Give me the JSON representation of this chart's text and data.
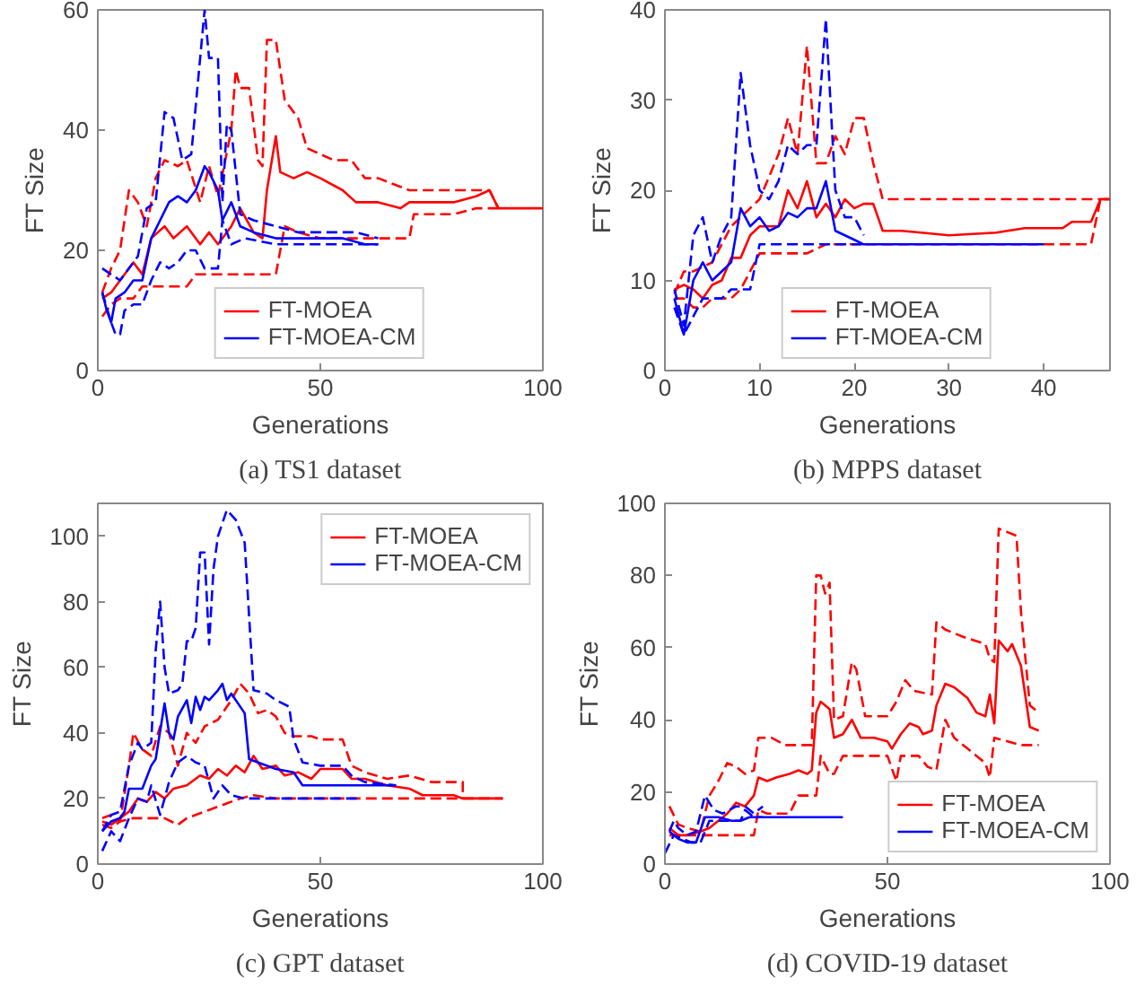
{
  "chart_data": [
    {
      "type": "line",
      "title": "(a) TS1 dataset",
      "xlabel": "Generations",
      "ylabel": "FT Size",
      "xlim": [
        0,
        100
      ],
      "ylim": [
        0,
        60
      ],
      "xticks": [
        0,
        50,
        100
      ],
      "yticks": [
        0,
        20,
        40,
        60
      ],
      "grid": false,
      "legend": "bottom",
      "marker": "none",
      "series": [
        {
          "name": "FT-MOEA",
          "color": "#ff0000",
          "line_style": "solid",
          "x": [
            1,
            3,
            5,
            8,
            10,
            12,
            15,
            17,
            20,
            23,
            25,
            27,
            30,
            32,
            35,
            37,
            38,
            40,
            41,
            44,
            47,
            50,
            55,
            58,
            63,
            68,
            70,
            75,
            80,
            85,
            88,
            90,
            100
          ],
          "values": [
            12,
            13,
            15,
            18,
            16,
            22,
            24,
            22,
            24,
            21,
            23,
            21,
            24,
            27,
            23,
            22,
            30,
            39,
            33,
            32,
            33,
            32,
            30,
            28,
            28,
            27,
            28,
            28,
            28,
            29,
            30,
            27,
            27
          ]
        },
        {
          "color": "#ff0000",
          "line_style": "dashed",
          "x": [
            1,
            3,
            5,
            7,
            9,
            11,
            13,
            15,
            18,
            20,
            23,
            25,
            27,
            30,
            31,
            32,
            34,
            36,
            37,
            38,
            40,
            42,
            45,
            47,
            50,
            53,
            57,
            60,
            63,
            70,
            80,
            88,
            90
          ],
          "values": [
            13,
            17,
            20,
            30,
            28,
            24,
            32,
            35,
            34,
            35,
            28,
            34,
            29,
            40,
            50,
            47,
            47,
            35,
            34,
            55,
            55,
            45,
            42,
            37,
            36,
            35,
            35,
            32,
            32,
            30,
            30,
            30,
            27
          ]
        },
        {
          "color": "#ff0000",
          "line_style": "dashed",
          "x": [
            1,
            3,
            5,
            8,
            10,
            15,
            20,
            22,
            30,
            40,
            42,
            45,
            50,
            60,
            70,
            71,
            80,
            85,
            88,
            90
          ],
          "values": [
            9,
            11,
            12,
            12,
            14,
            14,
            14,
            16,
            16,
            16,
            24,
            23,
            22,
            22,
            22,
            26,
            26,
            27,
            27,
            27
          ]
        },
        {
          "name": "FT-MOEA-CM",
          "color": "#0000ff",
          "line_style": "solid",
          "x": [
            1,
            2,
            3,
            4,
            6,
            8,
            10,
            12,
            14,
            16,
            18,
            20,
            22,
            24,
            25,
            27,
            28,
            30,
            32,
            35,
            40,
            45,
            50,
            55,
            60,
            63
          ],
          "values": [
            13,
            10,
            8,
            12,
            13,
            15,
            15,
            22,
            25,
            28,
            29,
            28,
            30,
            34,
            33,
            30,
            25,
            28,
            24,
            23,
            22,
            22,
            22,
            22,
            21,
            21
          ]
        },
        {
          "color": "#0000ff",
          "line_style": "dashed",
          "x": [
            1,
            3,
            5,
            7,
            9,
            11,
            13,
            15,
            17,
            19,
            21,
            24,
            25,
            27,
            28,
            29,
            30,
            32,
            35,
            40,
            45,
            50,
            58,
            63
          ],
          "values": [
            17,
            16,
            15,
            17,
            19,
            27,
            28,
            43,
            42,
            35,
            36,
            60,
            52,
            52,
            28,
            41,
            40,
            26,
            25,
            24,
            23,
            23,
            23,
            22
          ]
        },
        {
          "color": "#0000ff",
          "line_style": "dashed",
          "x": [
            1,
            3,
            4,
            5,
            6,
            8,
            10,
            12,
            14,
            16,
            18,
            20,
            22,
            24,
            26,
            27,
            28,
            30,
            33,
            40,
            45,
            50,
            55,
            60,
            63
          ],
          "values": [
            13,
            8,
            6,
            6,
            10,
            11,
            11,
            15,
            18,
            17,
            18,
            20,
            20,
            17,
            17,
            17,
            25,
            21,
            22,
            21,
            21,
            21,
            21,
            21,
            21
          ]
        }
      ]
    },
    {
      "type": "line",
      "title": "(b) MPPS dataset",
      "xlabel": "Generations",
      "ylabel": "FT Size",
      "xlim": [
        0,
        47
      ],
      "ylim": [
        0,
        40
      ],
      "xticks": [
        0,
        10,
        20,
        30,
        40
      ],
      "yticks": [
        0,
        10,
        20,
        30,
        40
      ],
      "grid": false,
      "legend": "bottom",
      "marker": "none",
      "series": [
        {
          "name": "FT-MOEA",
          "color": "#ff0000",
          "line_style": "solid",
          "x": [
            1,
            2,
            3,
            4,
            5,
            6,
            7,
            8,
            9,
            10,
            11,
            12,
            13,
            14,
            15,
            16,
            17,
            18,
            19,
            20,
            21,
            22,
            23,
            25,
            30,
            35,
            38,
            42,
            43,
            45,
            46,
            47
          ],
          "values": [
            9,
            9.5,
            9,
            8,
            9.5,
            10,
            12.5,
            12.5,
            15,
            16,
            16,
            16,
            20,
            18,
            21,
            17,
            18.5,
            17,
            19,
            18,
            18.5,
            18.5,
            15.5,
            15.5,
            15,
            15.3,
            15.8,
            15.8,
            16.5,
            16.5,
            19,
            19
          ]
        },
        {
          "color": "#ff0000",
          "line_style": "dashed",
          "x": [
            1,
            2,
            3,
            5,
            7,
            9,
            10,
            12,
            13,
            14,
            15,
            16,
            17,
            18,
            19,
            20,
            21,
            22,
            23,
            27,
            28,
            35,
            45,
            47
          ],
          "values": [
            8.5,
            11,
            11,
            12,
            16,
            18,
            19,
            24,
            28,
            24,
            36,
            23,
            23,
            26,
            24,
            28,
            28,
            23,
            19,
            19,
            19,
            19,
            19,
            19
          ]
        },
        {
          "color": "#ff0000",
          "line_style": "dashed",
          "x": [
            1,
            2,
            3,
            4,
            5,
            7,
            8,
            9,
            10,
            15,
            17,
            20,
            30,
            40,
            45,
            46,
            47
          ],
          "values": [
            8,
            8,
            7,
            7,
            8,
            8,
            9,
            11,
            13,
            13,
            14,
            14,
            14,
            14,
            14,
            19,
            19
          ]
        },
        {
          "name": "FT-MOEA-CM",
          "color": "#0000ff",
          "line_style": "solid",
          "x": [
            1,
            2,
            3,
            4,
            5,
            6,
            7,
            8,
            9,
            10,
            11,
            12,
            13,
            14,
            15,
            16,
            17,
            18,
            20,
            21,
            25,
            30,
            35,
            40
          ],
          "values": [
            8,
            4,
            10,
            12,
            10,
            11,
            12,
            18,
            16,
            17,
            15.5,
            16,
            17.5,
            17,
            18,
            18,
            21,
            15.5,
            14.5,
            14,
            14,
            14,
            14,
            14
          ]
        },
        {
          "color": "#0000ff",
          "line_style": "dashed",
          "x": [
            1,
            2,
            3,
            4,
            5,
            6,
            7,
            8,
            9,
            10,
            11,
            12,
            13,
            14,
            15,
            16,
            17,
            18,
            19,
            20,
            21
          ],
          "values": [
            9,
            5,
            15,
            17,
            12,
            15,
            17,
            33,
            25,
            20,
            19,
            21,
            25,
            24,
            25,
            25,
            39,
            20,
            17,
            17,
            15
          ]
        },
        {
          "color": "#0000ff",
          "line_style": "dashed",
          "x": [
            1,
            2,
            3,
            4,
            5,
            6,
            7,
            8,
            9,
            10,
            15,
            20,
            21
          ],
          "values": [
            7,
            4,
            6,
            8,
            8,
            8,
            9,
            9,
            9,
            14,
            14,
            14,
            14
          ]
        }
      ]
    },
    {
      "type": "line",
      "title": "(c) GPT dataset",
      "xlabel": "Generations",
      "ylabel": "FT Size",
      "xlim": [
        0,
        100
      ],
      "ylim": [
        0,
        110
      ],
      "xticks": [
        0,
        50,
        100
      ],
      "yticks": [
        0,
        20,
        40,
        60,
        80,
        100
      ],
      "grid": false,
      "legend": "top right",
      "marker": "none",
      "series": [
        {
          "name": "FT-MOEA",
          "color": "#ff0000",
          "line_style": "solid",
          "x": [
            1,
            3,
            5,
            7,
            9,
            11,
            13,
            15,
            17,
            20,
            23,
            25,
            27,
            29,
            31,
            33,
            35,
            37,
            40,
            42,
            45,
            48,
            50,
            55,
            57,
            60,
            65,
            70,
            73,
            80,
            82,
            91
          ],
          "values": [
            13,
            12,
            14,
            16,
            20,
            19,
            22,
            20,
            23,
            24,
            27,
            26,
            29,
            27,
            30,
            28,
            33,
            29,
            30,
            27,
            28,
            26,
            29,
            29,
            26,
            26,
            24,
            23,
            21,
            21,
            20,
            20
          ]
        },
        {
          "color": "#ff0000",
          "line_style": "dashed",
          "x": [
            1,
            3,
            5,
            7,
            8,
            10,
            12,
            14,
            16,
            18,
            20,
            22,
            24,
            27,
            30,
            32,
            34,
            36,
            38,
            40,
            42,
            44,
            48,
            50,
            55,
            57,
            60,
            65,
            70,
            75,
            82,
            82
          ],
          "values": [
            14,
            15,
            13,
            30,
            40,
            35,
            33,
            42,
            40,
            30,
            40,
            37,
            42,
            44,
            50,
            55,
            52,
            46,
            47,
            45,
            40,
            39,
            39,
            38,
            38,
            30,
            28,
            26,
            27,
            25,
            25,
            20
          ]
        },
        {
          "color": "#ff0000",
          "line_style": "dashed",
          "x": [
            1,
            3,
            5,
            8,
            12,
            15,
            18,
            20,
            24,
            28,
            32,
            35,
            40,
            50,
            60,
            70,
            80,
            91
          ],
          "values": [
            12,
            11,
            13,
            14,
            14,
            14,
            12,
            14,
            16,
            18,
            20,
            21,
            20,
            20,
            20,
            20,
            20,
            20
          ]
        },
        {
          "name": "FT-MOEA-CM",
          "color": "#0000ff",
          "line_style": "solid",
          "x": [
            1,
            3,
            5,
            6,
            7,
            10,
            12,
            13,
            15,
            16,
            17,
            18,
            20,
            21,
            22,
            23,
            24,
            25,
            27,
            28,
            29,
            30,
            33,
            34,
            36,
            40,
            44,
            46,
            50,
            55,
            60,
            65,
            67
          ],
          "values": [
            10,
            13,
            14,
            16,
            23,
            23,
            30,
            32,
            49,
            40,
            38,
            45,
            50,
            43,
            51,
            47,
            51,
            50,
            53,
            55,
            50,
            52,
            46,
            32,
            31,
            29,
            28,
            24,
            24,
            24,
            24,
            24,
            24
          ]
        },
        {
          "color": "#0000ff",
          "line_style": "dashed",
          "x": [
            1,
            3,
            5,
            7,
            9,
            10,
            12,
            13,
            14,
            15,
            16,
            18,
            19,
            20,
            21,
            22,
            23,
            24,
            25,
            26,
            27,
            29,
            31,
            33,
            35,
            38,
            40,
            43,
            44,
            46,
            50,
            55,
            57,
            60,
            67
          ],
          "values": [
            10,
            15,
            16,
            30,
            37,
            35,
            37,
            65,
            80,
            60,
            52,
            53,
            55,
            68,
            68,
            72,
            95,
            95,
            67,
            90,
            100,
            108,
            105,
            98,
            53,
            52,
            50,
            48,
            38,
            31,
            30,
            30,
            27,
            25,
            24
          ]
        },
        {
          "color": "#0000ff",
          "line_style": "dashed",
          "x": [
            1,
            3,
            5,
            7,
            9,
            11,
            12,
            14,
            16,
            18,
            20,
            22,
            24,
            26,
            28,
            30,
            33,
            40,
            50,
            59
          ],
          "values": [
            4,
            10,
            7,
            14,
            20,
            19,
            24,
            15,
            25,
            31,
            33,
            31,
            30,
            20,
            24,
            21,
            20,
            20,
            20,
            20
          ]
        }
      ]
    },
    {
      "type": "line",
      "title": "(d) COVID-19 dataset",
      "xlabel": "Generations",
      "ylabel": "FT Size",
      "xlim": [
        0,
        100
      ],
      "ylim": [
        0,
        100
      ],
      "xticks": [
        0,
        50,
        100
      ],
      "yticks": [
        0,
        20,
        40,
        60,
        80,
        100
      ],
      "grid": false,
      "legend": "bottom right",
      "marker": "none",
      "series": [
        {
          "name": "FT-MOEA",
          "color": "#ff0000",
          "line_style": "solid",
          "x": [
            1,
            3,
            5,
            8,
            10,
            12,
            14,
            16,
            18,
            20,
            21,
            23,
            25,
            28,
            30,
            32,
            33,
            34,
            35,
            37,
            38,
            40,
            42,
            44,
            47,
            50,
            51,
            53,
            55,
            57,
            58,
            60,
            61,
            63,
            65,
            68,
            70,
            72,
            73,
            74,
            75,
            77,
            78,
            80,
            82,
            84
          ],
          "values": [
            10,
            8,
            8,
            9,
            10,
            12,
            14,
            17,
            16,
            19,
            24,
            23,
            24,
            25,
            26,
            25,
            26,
            42,
            45,
            43,
            35,
            36,
            40,
            35,
            35,
            34,
            32,
            36,
            39,
            38,
            36,
            37,
            44,
            50,
            49,
            46,
            42,
            41,
            47,
            39,
            62,
            59,
            61,
            55,
            38,
            37
          ]
        },
        {
          "color": "#ff0000",
          "line_style": "dashed",
          "x": [
            1,
            3,
            5,
            8,
            10,
            12,
            14,
            16,
            18,
            20,
            21,
            24,
            27,
            30,
            33,
            34,
            35,
            36,
            37,
            38,
            40,
            42,
            43,
            45,
            50,
            52,
            54,
            56,
            60,
            61,
            63,
            67,
            72,
            73,
            74,
            75,
            77,
            79,
            80,
            82,
            84
          ],
          "values": [
            16,
            11,
            10,
            9,
            19,
            23,
            28,
            27,
            25,
            26,
            35,
            35,
            33,
            33,
            33,
            80,
            80,
            75,
            78,
            40,
            41,
            56,
            54,
            41,
            41,
            45,
            51,
            48,
            47,
            67,
            65,
            63,
            61,
            57,
            56,
            93,
            92,
            91,
            70,
            44,
            42
          ]
        },
        {
          "color": "#ff0000",
          "line_style": "dashed",
          "x": [
            1,
            3,
            5,
            10,
            15,
            20,
            21,
            23,
            28,
            30,
            34,
            35,
            37,
            38,
            40,
            45,
            50,
            52,
            53,
            57,
            59,
            61,
            63,
            65,
            68,
            70,
            72,
            73,
            74,
            77,
            80,
            84
          ],
          "values": [
            8,
            8,
            8,
            8,
            8,
            8,
            15,
            14,
            14,
            19,
            19,
            30,
            25,
            25,
            30,
            30,
            30,
            23,
            30,
            30,
            27,
            26,
            40,
            35,
            32,
            30,
            28,
            24,
            35,
            34,
            33,
            33
          ]
        },
        {
          "name": "FT-MOEA-CM",
          "color": "#0000ff",
          "line_style": "solid",
          "x": [
            1,
            3,
            5,
            7,
            9,
            12,
            15,
            17,
            19,
            20,
            25,
            30,
            35,
            40
          ],
          "values": [
            9,
            7,
            6,
            6,
            13,
            13,
            12,
            12,
            13,
            13,
            13,
            13,
            13,
            13
          ]
        },
        {
          "color": "#0000ff",
          "line_style": "dashed",
          "x": [
            1,
            2,
            3,
            5,
            7,
            9,
            11,
            13,
            16,
            18,
            20,
            22
          ],
          "values": [
            9,
            12,
            10,
            8,
            9,
            19,
            15,
            14,
            16,
            16,
            14,
            16
          ]
        },
        {
          "color": "#0000ff",
          "line_style": "dashed",
          "x": [
            0,
            2,
            4,
            6,
            8,
            10,
            12,
            15,
            17,
            18,
            20,
            22
          ],
          "values": [
            3,
            8,
            7,
            6,
            6,
            12,
            12,
            12,
            12,
            15,
            13,
            13
          ]
        }
      ]
    }
  ]
}
